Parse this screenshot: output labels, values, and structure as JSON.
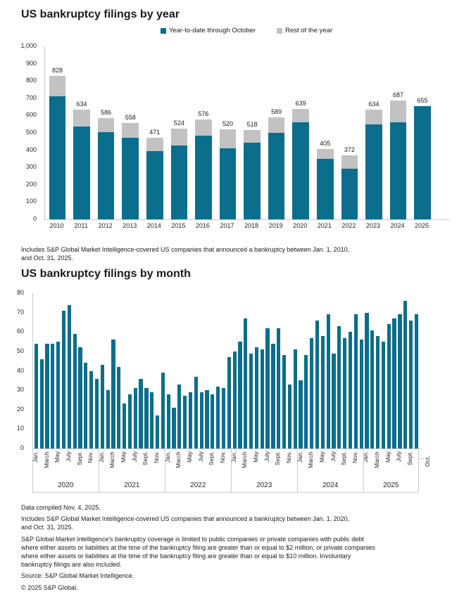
{
  "colors": {
    "teal": "#0a6e8c",
    "gray": "#c2c2c2",
    "axis": "#c9c9c9",
    "text": "#1a1a1a"
  },
  "chart_data": [
    {
      "type": "bar",
      "stacked": true,
      "title": "US bankruptcy filings by year",
      "legend_position": "top",
      "grid": false,
      "ylim": [
        0,
        1000
      ],
      "yticks": [
        "1,000",
        "900",
        "800",
        "700",
        "600",
        "500",
        "400",
        "300",
        "200",
        "100",
        "0"
      ],
      "categories": [
        "2010",
        "2011",
        "2012",
        "2013",
        "2014",
        "2015",
        "2016",
        "2017",
        "2018",
        "2019",
        "2020",
        "2021",
        "2022",
        "2023",
        "2024",
        "2025"
      ],
      "series": [
        {
          "name": "Year-to-date through October",
          "color_key": "teal",
          "values": [
            712,
            536,
            505,
            470,
            393,
            425,
            485,
            410,
            443,
            500,
            563,
            349,
            294,
            550,
            562,
            655
          ]
        },
        {
          "name": "Rest of the year",
          "color_key": "gray",
          "values": [
            116,
            98,
            81,
            88,
            78,
            99,
            91,
            110,
            75,
            89,
            76,
            56,
            78,
            84,
            125,
            0
          ]
        }
      ],
      "totals": [
        828,
        634,
        586,
        558,
        471,
        524,
        576,
        520,
        518,
        589,
        639,
        405,
        372,
        634,
        687,
        655
      ],
      "footnote_lines": [
        "Includes S&P Global Market Intelligence-covered US companies that announced a bankruptcy between Jan. 1, 2010,",
        "and Oct. 31, 2025."
      ]
    },
    {
      "type": "bar",
      "stacked": false,
      "title": "US bankruptcy filings by month",
      "grid": false,
      "ylim": [
        0,
        80
      ],
      "yticks": [
        "80",
        "70",
        "60",
        "50",
        "40",
        "30",
        "20",
        "10",
        "0"
      ],
      "month_tick_labels": [
        "Jan.",
        "March",
        "May",
        "July",
        "Sept.",
        "Nov."
      ],
      "last_bar_label": "Oct.",
      "years": [
        {
          "year": "2020",
          "values": [
            54,
            46,
            54,
            54,
            55,
            71,
            74,
            59,
            52,
            44,
            40,
            36
          ]
        },
        {
          "year": "2021",
          "values": [
            43,
            30,
            56,
            42,
            23,
            28,
            31,
            36,
            31,
            29,
            17,
            39
          ]
        },
        {
          "year": "2022",
          "values": [
            28,
            21,
            33,
            27,
            29,
            37,
            29,
            30,
            28,
            32,
            31,
            47
          ]
        },
        {
          "year": "2023",
          "values": [
            50,
            55,
            67,
            49,
            52,
            51,
            62,
            54,
            62,
            48,
            33,
            51
          ]
        },
        {
          "year": "2024",
          "values": [
            35,
            48,
            57,
            66,
            58,
            69,
            49,
            63,
            57,
            60,
            69,
            56
          ]
        },
        {
          "year": "2025",
          "values": [
            70,
            61,
            58,
            55,
            64,
            67,
            69,
            76,
            66,
            69
          ]
        }
      ]
    }
  ],
  "footer": {
    "paragraphs": [
      [
        "Data compiled Nov. 4, 2025."
      ],
      [
        "Includes S&P Global Market Intelligence-covered US companies that announced a bankruptcy between Jan. 1, 2020,",
        "and Oct. 31, 2025."
      ],
      [
        "S&P Global Market Intelligence's bankruptcy coverage is limited to public companies or private companies with public debt",
        "where either assets or liabilities at the time of the bankruptcy filing are greater than or equal to $2 million, or private companies",
        "where either assets or liabilities at the time of the bankruptcy filing are greater than or equal to $10 million. Involuntary",
        "bankruptcy filings are also included."
      ],
      [
        "Source: S&P Global Market Intelligence."
      ],
      [
        "© 2025 S&P Global."
      ]
    ]
  }
}
